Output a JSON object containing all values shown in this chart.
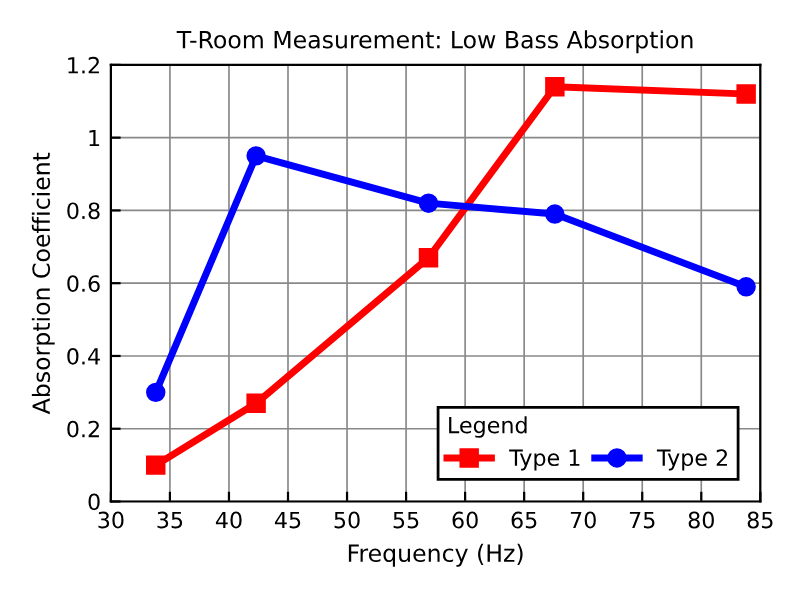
{
  "chart_data": {
    "type": "line",
    "title": "T-Room Measurement: Low Bass Absorption",
    "xlabel": "Frequency (Hz)",
    "ylabel": "Absorption Coefficient",
    "legend_title": "Legend",
    "x": [
      33.8,
      42.3,
      56.9,
      67.6,
      83.8
    ],
    "series": [
      {
        "name": "Type 1",
        "color": "#ff0000",
        "marker": "square",
        "values": [
          0.1,
          0.27,
          0.67,
          1.14,
          1.12
        ]
      },
      {
        "name": "Type 2",
        "color": "#0000ff",
        "marker": "circle",
        "values": [
          0.3,
          0.95,
          0.82,
          0.79,
          0.59
        ]
      }
    ],
    "xlim": [
      30,
      85
    ],
    "xticks": [
      30,
      35,
      40,
      45,
      50,
      55,
      60,
      65,
      70,
      75,
      80,
      85
    ],
    "ylim": [
      0,
      1.2
    ],
    "yticks": [
      0,
      0.2,
      0.4,
      0.6,
      0.8,
      1,
      1.2
    ],
    "grid": true,
    "legend": "bottom right",
    "line_style": "solid"
  }
}
